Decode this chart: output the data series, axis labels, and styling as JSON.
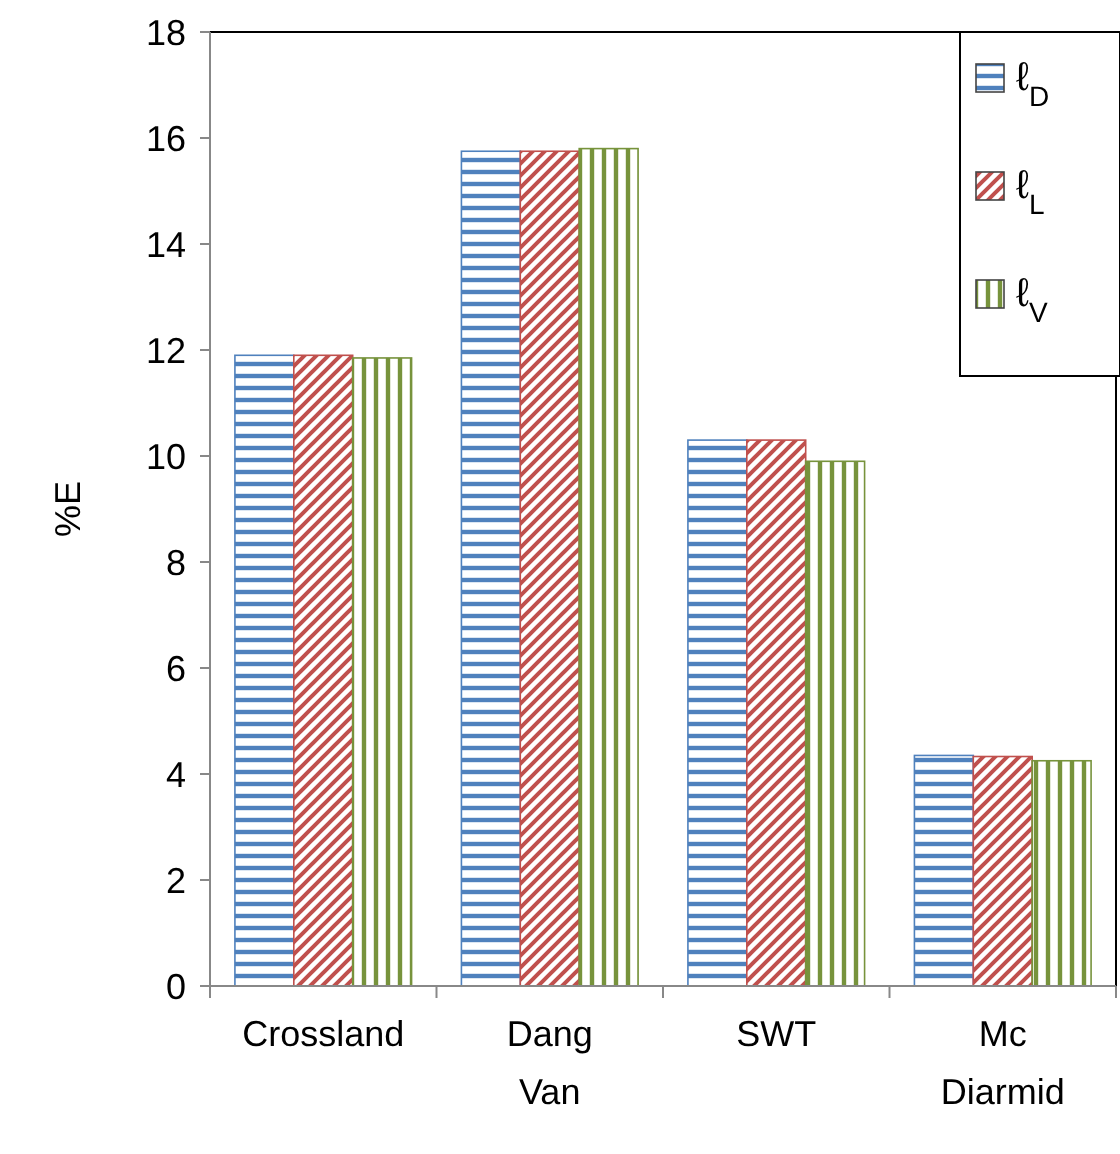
{
  "chart_data": {
    "type": "bar",
    "ylabel": "%E",
    "categories": [
      "Crossland",
      "Dang Van",
      "SWT",
      "Mc Diarmid"
    ],
    "series": [
      {
        "name": "ℓ$_{D}$",
        "color": "#4f81bd",
        "values": [
          11.9,
          15.75,
          10.3,
          4.35
        ]
      },
      {
        "name": "ℓ$_{L}$",
        "color": "#c0504d",
        "values": [
          11.9,
          15.75,
          10.3,
          4.33
        ]
      },
      {
        "name": "ℓ$_{V}$",
        "color": "#77933c",
        "values": [
          11.85,
          15.8,
          9.9,
          4.25
        ]
      }
    ],
    "ylim": [
      0,
      18
    ],
    "yticks": [
      0,
      2,
      4,
      6,
      8,
      10,
      12,
      14,
      16,
      18
    ],
    "grid": false,
    "legend": "top right"
  }
}
